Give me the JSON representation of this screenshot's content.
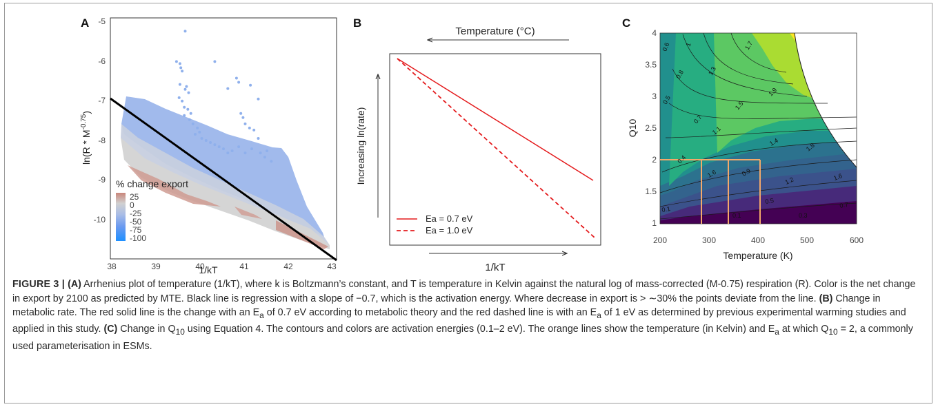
{
  "colors": {
    "positive_export": "#c9867a",
    "neutral_export": "#d0d0d0",
    "negative_export": "#8fb0ec",
    "strong_negative_export": "#1e90ff",
    "regression_line": "#000000",
    "panel_b_line": "#e41a1c",
    "contour_low": "#440154",
    "contour_high": "#fde725",
    "q10_guides": "#f4a96a"
  },
  "figure": {
    "panels": {
      "A": {
        "letter": "A",
        "ylabel": "ln(R * M",
        "ylabel_sup": "-0.75",
        "ylabel_close": ")",
        "xlabel": "1/kT",
        "x_ticks": [
          "38",
          "39",
          "40",
          "41",
          "42",
          "43"
        ],
        "y_ticks": [
          "-5",
          "-6",
          "-7",
          "-8",
          "-9",
          "-10"
        ],
        "legend_title": "% change export",
        "legend_labels": [
          "25",
          "0",
          "-25",
          "-50",
          "-75",
          "-100"
        ]
      },
      "B": {
        "letter": "B",
        "top_label": "Temperature (°C)",
        "ylabel": "Increasing ln(rate)",
        "xlabel": "1/kT",
        "legend": [
          "Ea = 0.7 eV",
          "Ea = 1.0 eV"
        ]
      },
      "C": {
        "letter": "C",
        "ylabel": "Q10",
        "xlabel": "Temperature (K)",
        "x_ticks": [
          "200",
          "300",
          "400",
          "500",
          "600"
        ],
        "y_ticks": [
          "4",
          "3.5",
          "3",
          "2.5",
          "2",
          "1.5",
          "1"
        ],
        "contour_labels": [
          "0.6",
          "1",
          "1.7",
          "1.3",
          "0.8",
          "1.9",
          "0.5",
          "1.5",
          "0.7",
          "1.1",
          "1.4",
          "1.8",
          "0.4",
          "1.6",
          "0.9",
          "1.2",
          "1.6",
          "0.5",
          "0.7",
          "0.1",
          "0.1",
          "0.3"
        ]
      }
    }
  },
  "chart_data": [
    {
      "panel": "A",
      "type": "scatter",
      "xlabel": "1/kT",
      "ylabel": "ln(R * M-0.75)",
      "xlim": [
        37.9,
        43.1
      ],
      "ylim": [
        -10.7,
        -4.9
      ],
      "grid": false,
      "legend_placement": "bottom-left",
      "legend_title": "% change export",
      "legend_ticks": [
        25,
        0,
        -25,
        -50,
        -75,
        -100
      ],
      "regression_line": {
        "slope": -0.7,
        "x": [
          37.9,
          43.1
        ],
        "y": [
          -6.98,
          -10.62
        ]
      },
      "outlier_points": [
        [
          39.62,
          -5.22
        ],
        [
          39.42,
          -5.95
        ],
        [
          39.5,
          -6.0
        ],
        [
          39.52,
          -6.1
        ],
        [
          39.55,
          -6.18
        ],
        [
          40.3,
          -5.95
        ],
        [
          39.5,
          -6.5
        ],
        [
          39.65,
          -6.55
        ],
        [
          39.62,
          -6.62
        ],
        [
          39.7,
          -6.7
        ],
        [
          39.48,
          -6.82
        ],
        [
          39.55,
          -6.9
        ],
        [
          39.6,
          -7.05
        ],
        [
          39.68,
          -7.1
        ],
        [
          40.8,
          -6.35
        ],
        [
          40.85,
          -6.45
        ],
        [
          40.6,
          -6.6
        ],
        [
          41.12,
          -6.52
        ],
        [
          41.3,
          -6.85
        ],
        [
          40.9,
          -7.2
        ],
        [
          40.95,
          -7.3
        ],
        [
          41.0,
          -7.45
        ],
        [
          41.1,
          -7.55
        ],
        [
          39.6,
          -7.25
        ],
        [
          39.75,
          -7.2
        ],
        [
          39.72,
          -7.35
        ],
        [
          39.8,
          -7.45
        ],
        [
          39.9,
          -7.55
        ],
        [
          39.95,
          -7.65
        ],
        [
          39.85,
          -7.7
        ],
        [
          40.0,
          -7.8
        ],
        [
          40.1,
          -7.85
        ],
        [
          40.2,
          -7.9
        ],
        [
          41.2,
          -7.6
        ],
        [
          41.3,
          -7.8
        ],
        [
          40.7,
          -8.1
        ],
        [
          40.85,
          -8.0
        ],
        [
          41.0,
          -8.15
        ],
        [
          41.15,
          -8.05
        ],
        [
          41.45,
          -8.25
        ],
        [
          41.6,
          -8.35
        ],
        [
          41.35,
          -8.15
        ],
        [
          41.5,
          -8.1
        ],
        [
          40.5,
          -8.05
        ],
        [
          40.6,
          -8.15
        ],
        [
          40.3,
          -7.95
        ],
        [
          40.4,
          -8.0
        ]
      ]
    },
    {
      "panel": "B",
      "type": "line",
      "xlabel": "1/kT",
      "ylabel": "Increasing ln(rate)",
      "series": [
        {
          "name": "Ea = 0.7 eV",
          "style": "solid",
          "x": [
            0,
            1
          ],
          "y": [
            1.0,
            0.3
          ]
        },
        {
          "name": "Ea = 1.0 eV",
          "style": "dashed",
          "x": [
            0,
            1
          ],
          "y": [
            1.0,
            0.0
          ]
        }
      ]
    },
    {
      "panel": "C",
      "type": "heatmap",
      "xlabel": "Temperature (K)",
      "ylabel": "Q10",
      "xlim": [
        200,
        600
      ],
      "ylim": [
        1,
        4
      ],
      "contour_levels": [
        0.1,
        0.2,
        0.3,
        0.4,
        0.5,
        0.6,
        0.7,
        0.8,
        0.9,
        1.0,
        1.1,
        1.2,
        1.3,
        1.4,
        1.5,
        1.6,
        1.7,
        1.8,
        1.9,
        2.0
      ],
      "q10_reference": 2,
      "reference_temperatures": [
        283,
        338,
        403
      ]
    }
  ],
  "caption": {
    "figure_label": "FIGURE 3 | ",
    "a_label": "(A)",
    "a_text": " Arrhenius plot of temperature (1/kT), where k is Boltzmann’s constant, and T is temperature in Kelvin against the natural log of mass-corrected (M-0.75) respiration (R). Color is the net change in export by 2100 as predicted by MTE. Black line is regression with a slope of −0.7, which is the activation energy. Where decrease in export is > ∼30% the points deviate from the line. ",
    "b_label": "(B)",
    "b_text_1": " Change in metabolic rate. The red solid line is the change with an E",
    "b_sub_1": "a",
    "b_text_2": " of 0.7 eV according to metabolic theory and the red dashed line is with an E",
    "b_sub_2": "a",
    "b_text_3": " of 1 eV as determined by previous experimental warming studies and applied in this study. ",
    "c_label": "(C)",
    "c_text_1": " Change in Q",
    "c_sub_1": "10",
    "c_text_2": " using Equation 4. The contours and colors are activation energies (0.1–2 eV). The orange lines show the temperature (in Kelvin) and E",
    "c_sub_2": "a",
    "c_text_3": " at which Q",
    "c_sub_3": "10",
    "c_text_4": " = 2, a commonly used parameterisation in ESMs."
  }
}
